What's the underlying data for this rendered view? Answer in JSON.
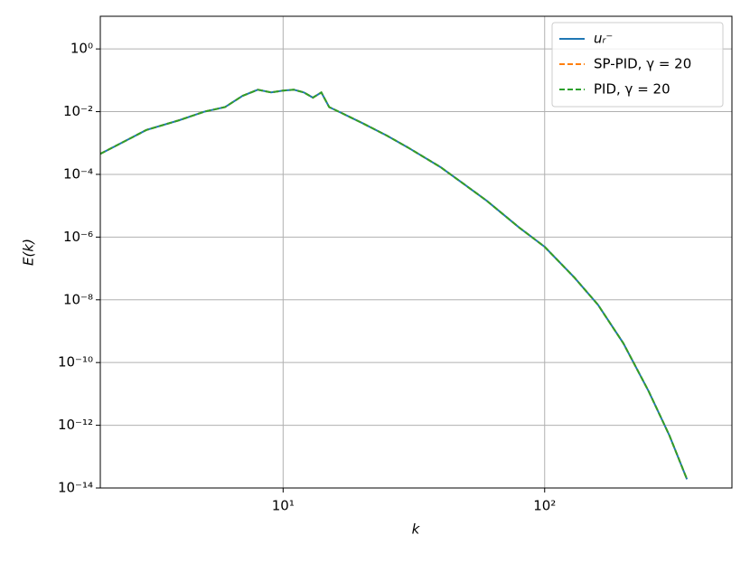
{
  "chart_data": {
    "type": "line",
    "xlabel": "k",
    "ylabel": "E(k)",
    "log_x": true,
    "log_y": true,
    "grid": true,
    "legend": "upper right",
    "xlim": [
      2,
      520
    ],
    "ylim": [
      1e-14,
      11
    ],
    "xticks": [
      {
        "value": 10,
        "label": "10¹"
      },
      {
        "value": 100,
        "label": "10²"
      }
    ],
    "yticks": [
      {
        "value": 1e-14,
        "label": "10⁻¹⁴"
      },
      {
        "value": 1e-12,
        "label": "10⁻¹²"
      },
      {
        "value": 1e-10,
        "label": "10⁻¹⁰"
      },
      {
        "value": 1e-08,
        "label": "10⁻⁸"
      },
      {
        "value": 1e-06,
        "label": "10⁻⁶"
      },
      {
        "value": 0.0001,
        "label": "10⁻⁴"
      },
      {
        "value": 0.01,
        "label": "10⁻²"
      },
      {
        "value": 1,
        "label": "10⁰"
      }
    ],
    "x": [
      2,
      3,
      4,
      5,
      6,
      7,
      8,
      9,
      10,
      11,
      12,
      13,
      14,
      15,
      17,
      20,
      25,
      30,
      40,
      50,
      60,
      80,
      100,
      130,
      160,
      200,
      250,
      300,
      350
    ],
    "series": [
      {
        "name": "uᵣ⁻",
        "color": "#1f77b4",
        "dash": false,
        "values": [
          0.00045,
          0.0026,
          0.0053,
          0.01,
          0.014,
          0.032,
          0.05,
          0.041,
          0.047,
          0.05,
          0.041,
          0.028,
          0.041,
          0.014,
          0.0085,
          0.0044,
          0.0017,
          0.00072,
          0.00017,
          4.4e-05,
          1.45e-05,
          2e-06,
          4.9e-07,
          5.1e-08,
          6.9e-09,
          4.1e-10,
          1.2e-11,
          4.7e-13,
          1.9e-14
        ]
      },
      {
        "name": "SP-PID, γ = 20",
        "color": "#ff7f0e",
        "dash": true,
        "values": [
          0.00045,
          0.0026,
          0.0053,
          0.01,
          0.014,
          0.032,
          0.05,
          0.041,
          0.047,
          0.05,
          0.041,
          0.028,
          0.041,
          0.014,
          0.0085,
          0.0044,
          0.0017,
          0.00072,
          0.00017,
          4.4e-05,
          1.45e-05,
          2e-06,
          4.9e-07,
          5.1e-08,
          6.9e-09,
          4.1e-10,
          1.2e-11,
          4.7e-13,
          1.9e-14
        ]
      },
      {
        "name": "PID, γ = 20",
        "color": "#2ca02c",
        "dash": true,
        "values": [
          0.00045,
          0.0026,
          0.0053,
          0.01,
          0.014,
          0.032,
          0.05,
          0.041,
          0.047,
          0.05,
          0.041,
          0.028,
          0.041,
          0.014,
          0.0085,
          0.0044,
          0.0017,
          0.00072,
          0.00017,
          4.4e-05,
          1.45e-05,
          2e-06,
          4.9e-07,
          5.1e-08,
          6.9e-09,
          4.1e-10,
          1.2e-11,
          4.7e-13,
          1.9e-14
        ]
      }
    ]
  }
}
